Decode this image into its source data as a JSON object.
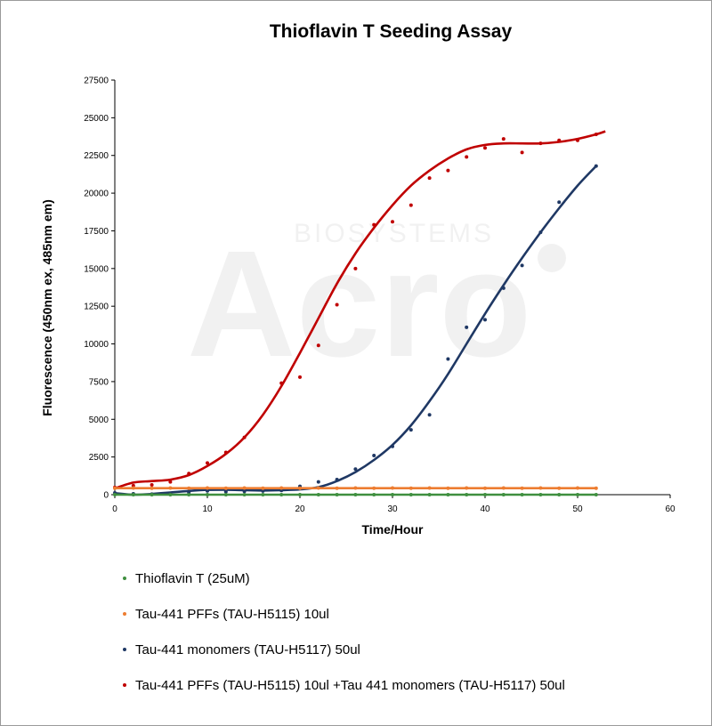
{
  "chart_data": {
    "type": "scatter",
    "title": "Thioflavin T Seeding Assay",
    "xlabel": "Time/Hour",
    "ylabel": "Fluorescence (450nm ex, 485nm em)",
    "xlim": [
      0,
      60
    ],
    "ylim": [
      0,
      27500
    ],
    "x_ticks": [
      "0",
      "10",
      "20",
      "30",
      "40",
      "50",
      "60"
    ],
    "y_ticks": [
      "0",
      "2500",
      "5000",
      "7500",
      "10000",
      "12500",
      "15000",
      "17500",
      "20000",
      "22500",
      "25000",
      "27500"
    ],
    "legend_position": "bottom",
    "grid": false,
    "watermark": "Acro BIOSYSTEMS",
    "series": [
      {
        "name": "Thioflavin T (25uM)",
        "color": "#3f8f3f",
        "x": [
          0,
          2,
          4,
          6,
          8,
          10,
          12,
          14,
          16,
          18,
          20,
          22,
          24,
          26,
          28,
          30,
          32,
          34,
          36,
          38,
          40,
          42,
          44,
          46,
          48,
          50,
          52
        ],
        "y": [
          0,
          0,
          0,
          0,
          0,
          0,
          0,
          0,
          0,
          0,
          0,
          0,
          0,
          0,
          0,
          0,
          0,
          0,
          0,
          0,
          0,
          0,
          0,
          0,
          0,
          0,
          0
        ],
        "fit_x": [
          0,
          52
        ],
        "fit_y": [
          0,
          0
        ]
      },
      {
        "name": "Tau-441 PFFs (TAU-H5115) 10ul",
        "color": "#ed7d31",
        "x": [
          0,
          2,
          4,
          6,
          8,
          10,
          12,
          14,
          16,
          18,
          20,
          22,
          24,
          26,
          28,
          30,
          32,
          34,
          36,
          38,
          40,
          42,
          44,
          46,
          48,
          50,
          52
        ],
        "y": [
          430,
          440,
          430,
          440,
          430,
          440,
          430,
          440,
          430,
          440,
          430,
          440,
          430,
          440,
          430,
          440,
          430,
          440,
          430,
          440,
          430,
          440,
          430,
          440,
          430,
          440,
          430
        ],
        "fit_x": [
          0,
          52
        ],
        "fit_y": [
          430,
          430
        ]
      },
      {
        "name": "Tau-441 monomers (TAU-H5117) 50ul",
        "color": "#1f3864",
        "x": [
          0,
          2,
          4,
          6,
          8,
          10,
          12,
          14,
          16,
          18,
          20,
          22,
          24,
          26,
          28,
          30,
          32,
          34,
          36,
          38,
          40,
          42,
          44,
          46,
          48,
          52
        ],
        "y": [
          120,
          60,
          40,
          80,
          150,
          250,
          200,
          220,
          240,
          280,
          550,
          850,
          1000,
          1700,
          2600,
          3200,
          4300,
          5300,
          9000,
          11100,
          11600,
          13700,
          15200,
          17400,
          19400,
          21800
        ],
        "fit_x": [
          0,
          2,
          4,
          6,
          8,
          10,
          12,
          14,
          16,
          18,
          20,
          22,
          24,
          26,
          28,
          30,
          32,
          34,
          36,
          38,
          40,
          42,
          44,
          46,
          48,
          50,
          52
        ],
        "fit_y": [
          100,
          0,
          50,
          150,
          250,
          320,
          330,
          300,
          280,
          300,
          350,
          500,
          900,
          1500,
          2300,
          3300,
          4600,
          6200,
          8000,
          10000,
          12000,
          13900,
          15700,
          17400,
          19000,
          20500,
          21800
        ]
      },
      {
        "name": "Tau-441 PFFs (TAU-H5115) 10ul +Tau 441 monomers (TAU-H5117) 50ul",
        "color": "#c00000",
        "x": [
          0,
          2,
          4,
          6,
          8,
          10,
          12,
          14,
          18,
          20,
          22,
          24,
          26,
          28,
          30,
          32,
          34,
          36,
          38,
          40,
          42,
          44,
          46,
          48,
          50,
          52
        ],
        "y": [
          480,
          600,
          650,
          850,
          1400,
          2100,
          2800,
          3800,
          7400,
          7800,
          9900,
          12600,
          15000,
          17900,
          18100,
          19200,
          21000,
          21500,
          22400,
          23000,
          23600,
          22700,
          23300,
          23500,
          23500,
          23900
        ],
        "fit_x": [
          0,
          2,
          4,
          6,
          8,
          10,
          12,
          14,
          16,
          18,
          20,
          22,
          24,
          26,
          28,
          30,
          32,
          34,
          36,
          38,
          40,
          42,
          44,
          46,
          48,
          50,
          52,
          53
        ],
        "fit_y": [
          420,
          800,
          900,
          1000,
          1300,
          1900,
          2700,
          3800,
          5300,
          7200,
          9400,
          11700,
          14000,
          16000,
          17700,
          19200,
          20500,
          21500,
          22300,
          22900,
          23200,
          23300,
          23300,
          23300,
          23400,
          23600,
          23900,
          24100
        ]
      }
    ]
  }
}
